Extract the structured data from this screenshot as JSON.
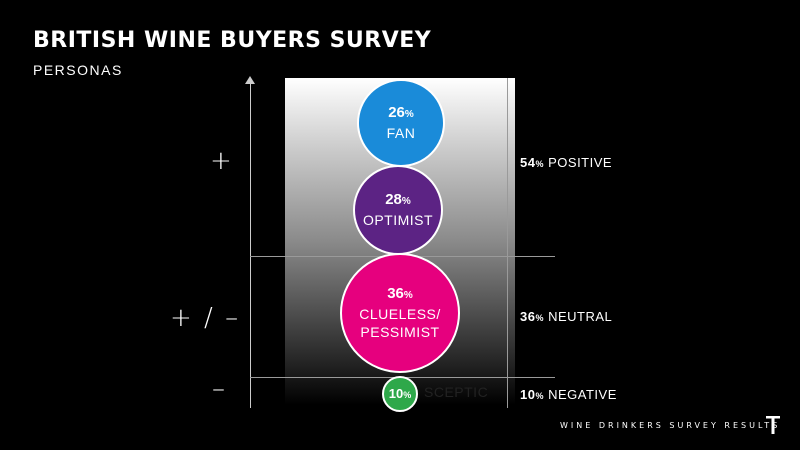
{
  "header": {
    "title": "BRITISH WINE BUYERS SURVEY",
    "subtitle": "PERSONAS"
  },
  "axis_signs": {
    "positive": "+",
    "neutral": "+ / –",
    "negative": "–"
  },
  "personas": [
    {
      "pct": "26",
      "unit": "%",
      "name": "FAN",
      "color": "#1a8bd9"
    },
    {
      "pct": "28",
      "unit": "%",
      "name": "OPTIMIST",
      "color": "#5c2384"
    },
    {
      "pct": "36",
      "unit": "%",
      "name_line1": "CLUELESS/",
      "name_line2": "PESSIMIST",
      "color": "#e6007e"
    },
    {
      "pct": "10",
      "unit": "%",
      "name": "SCEPTIC",
      "color": "#2ea84a"
    }
  ],
  "groups": [
    {
      "pct": "54",
      "unit": "%",
      "label": "POSITIVE"
    },
    {
      "pct": "36",
      "unit": "%",
      "label": "NEUTRAL"
    },
    {
      "pct": "10",
      "unit": "%",
      "label": "NEGATIVE"
    }
  ],
  "footer": "WINE DRINKERS SURVEY RESULTS",
  "logo_icon": "t-logo-icon"
}
